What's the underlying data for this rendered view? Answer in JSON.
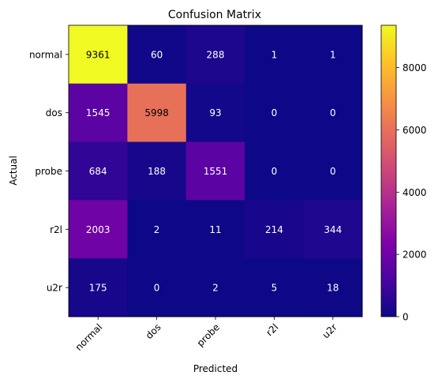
{
  "chart_data": {
    "type": "heatmap",
    "title": "Confusion Matrix",
    "xlabel": "Predicted",
    "ylabel": "Actual",
    "x_categories": [
      "normal",
      "dos",
      "probe",
      "r2l",
      "u2r"
    ],
    "y_categories": [
      "normal",
      "dos",
      "probe",
      "r2l",
      "u2r"
    ],
    "values": [
      [
        9361,
        60,
        288,
        1,
        1
      ],
      [
        1545,
        5998,
        93,
        0,
        0
      ],
      [
        684,
        188,
        1551,
        0,
        0
      ],
      [
        2003,
        2,
        11,
        214,
        344
      ],
      [
        175,
        0,
        2,
        5,
        18
      ]
    ],
    "colormap": "plasma",
    "colorbar": {
      "vmin": 0,
      "vmax": 9361,
      "ticks": [
        0,
        2000,
        4000,
        6000,
        8000
      ]
    },
    "text_color_low": "#ffffff",
    "text_color_high": "#000000"
  }
}
